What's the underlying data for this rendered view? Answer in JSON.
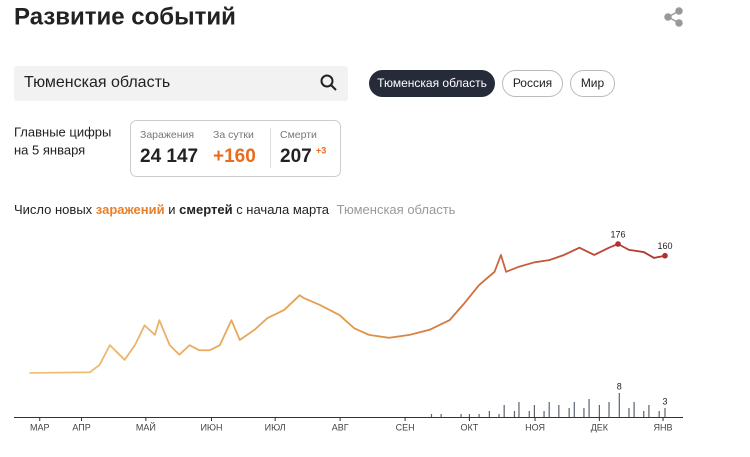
{
  "header": {
    "title": "Развитие событий"
  },
  "search": {
    "value": "Тюменская область"
  },
  "region_buttons": [
    "Тюменская область",
    "Россия",
    "Мир"
  ],
  "summary": {
    "caption_line1": "Главные цифры",
    "caption_line2": "на 5 января",
    "items": [
      {
        "label": "Заражения",
        "value": "24 147"
      },
      {
        "label": "За сутки",
        "value": "+160"
      },
      {
        "label": "Смерти",
        "value": "207",
        "delta": "+3"
      }
    ]
  },
  "chart_data": {
    "type": "line",
    "subtitle_parts": [
      "Число новых",
      "заражений",
      "и",
      "смертей",
      "с начала марта",
      "Тюменская область"
    ],
    "xlim": [
      -0.4,
      10.0
    ],
    "xticks": [
      {
        "value": 0,
        "label": "МАР"
      },
      {
        "value": 0.65,
        "label": "АПР"
      },
      {
        "value": 1.65,
        "label": "МАЙ"
      },
      {
        "value": 2.67,
        "label": "ИЮН"
      },
      {
        "value": 3.66,
        "label": "ИЮЛ"
      },
      {
        "value": 4.67,
        "label": "АВГ"
      },
      {
        "value": 5.68,
        "label": "СЕН"
      },
      {
        "value": 6.68,
        "label": "ОКТ"
      },
      {
        "value": 7.7,
        "label": "НОЯ"
      },
      {
        "value": 8.7,
        "label": "ДЕК"
      },
      {
        "value": 9.69,
        "label": "ЯНВ"
      }
    ],
    "ylim": [
      0,
      200
    ],
    "y2lim": [
      0,
      10
    ],
    "series": [
      {
        "type": "line",
        "colors": [
          "#efc27a",
          "#e39a4a",
          "#b0302e"
        ],
        "x": [
          -0.16,
          0.78,
          0.93,
          1.09,
          1.32,
          1.48,
          1.63,
          1.79,
          1.86,
          2.02,
          2.17,
          2.33,
          2.48,
          2.64,
          2.8,
          2.98,
          3.11,
          3.34,
          3.54,
          3.8,
          4.04,
          4.11,
          4.35,
          4.66,
          4.89,
          5.12,
          5.43,
          5.75,
          6.06,
          6.37,
          6.6,
          6.83,
          7.07,
          7.17,
          7.25,
          7.45,
          7.69,
          7.92,
          8.15,
          8.39,
          8.62,
          8.85,
          8.99,
          9.16,
          9.39,
          9.55,
          9.72
        ],
        "values": [
          0,
          1,
          11,
          38,
          18,
          38,
          65,
          52,
          72,
          38,
          25,
          38,
          31,
          31,
          38,
          72,
          45,
          59,
          75,
          86,
          106,
          102,
          93,
          79,
          61,
          52,
          48,
          52,
          59,
          72,
          95,
          120,
          138,
          161,
          138,
          145,
          151,
          154,
          161,
          171,
          161,
          171,
          176,
          168,
          165,
          157,
          160
        ],
        "labeled": [
          42,
          46
        ]
      },
      {
        "type": "bar",
        "axis": "y2",
        "color": "#5b6470",
        "x": [
          6.09,
          6.24,
          6.55,
          6.68,
          6.83,
          6.99,
          7.14,
          7.22,
          7.38,
          7.45,
          7.61,
          7.69,
          7.84,
          7.92,
          8.07,
          8.23,
          8.31,
          8.46,
          8.54,
          8.7,
          8.85,
          9.01,
          9.16,
          9.24,
          9.39,
          9.47,
          9.63,
          9.72
        ],
        "values": [
          1,
          1,
          1,
          1,
          1,
          2,
          1,
          4,
          2,
          5,
          2,
          4,
          2,
          5,
          4,
          3,
          5,
          3,
          6,
          4,
          5,
          8,
          3,
          5,
          2,
          4,
          2,
          3
        ],
        "labeled": [
          21,
          27
        ]
      }
    ]
  }
}
